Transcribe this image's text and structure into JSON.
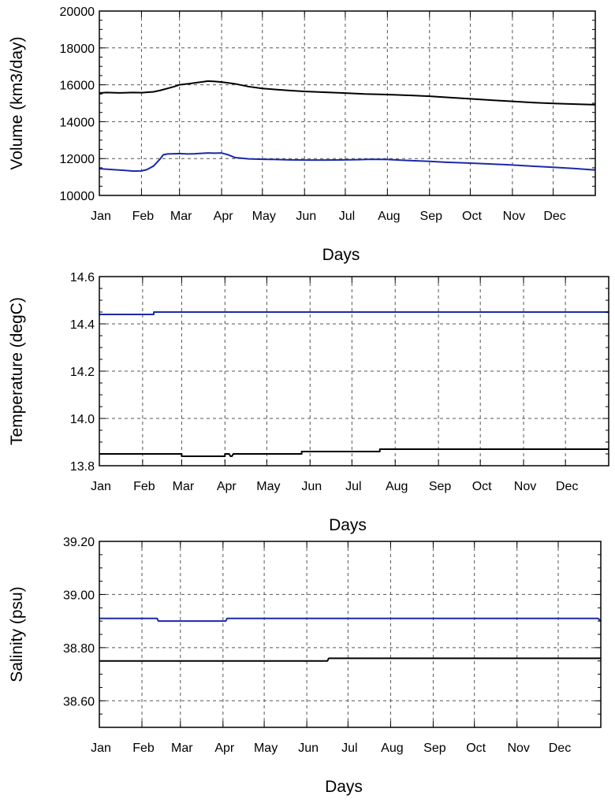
{
  "chart_data": [
    {
      "type": "line",
      "ylabel": "Volume (km3/day)",
      "xlabel": "Days",
      "ylim": [
        10000,
        20000
      ],
      "xlim": [
        0,
        365
      ],
      "yticks": [
        10000,
        12000,
        14000,
        16000,
        18000,
        20000
      ],
      "ytick_labels": [
        "10000",
        "12000",
        "14000",
        "16000",
        "18000",
        "20000"
      ],
      "months": [
        "Jan",
        "Feb",
        "Mar",
        "Apr",
        "May",
        "Jun",
        "Jul",
        "Aug",
        "Sep",
        "Oct",
        "Nov",
        "Dec"
      ],
      "month_days": [
        0,
        31,
        59,
        90,
        120,
        151,
        181,
        212,
        243,
        273,
        304,
        334
      ],
      "grid": true,
      "series": [
        {
          "color": "#000000",
          "x": [
            0,
            5,
            15,
            25,
            31,
            40,
            45,
            50,
            55,
            59,
            65,
            70,
            75,
            80,
            85,
            90,
            95,
            100,
            110,
            120,
            130,
            140,
            151,
            165,
            181,
            195,
            212,
            230,
            243,
            260,
            273,
            290,
            304,
            320,
            334,
            350,
            365
          ],
          "y": [
            15550,
            15580,
            15560,
            15580,
            15570,
            15620,
            15700,
            15800,
            15900,
            16000,
            16050,
            16100,
            16150,
            16200,
            16180,
            16150,
            16100,
            16050,
            15900,
            15800,
            15740,
            15690,
            15640,
            15600,
            15550,
            15500,
            15470,
            15420,
            15380,
            15300,
            15240,
            15160,
            15100,
            15030,
            14990,
            14950,
            14920
          ]
        },
        {
          "color": "#1a2aa8",
          "x": [
            0,
            10,
            20,
            25,
            31,
            35,
            40,
            45,
            47,
            50,
            55,
            59,
            65,
            70,
            75,
            80,
            85,
            90,
            95,
            100,
            110,
            120,
            130,
            140,
            151,
            165,
            181,
            190,
            200,
            212,
            225,
            243,
            255,
            273,
            290,
            304,
            320,
            334,
            350,
            365
          ],
          "y": [
            11450,
            11400,
            11350,
            11320,
            11330,
            11400,
            11600,
            12000,
            12200,
            12250,
            12260,
            12270,
            12250,
            12260,
            12280,
            12300,
            12290,
            12300,
            12200,
            12050,
            11980,
            11960,
            11950,
            11930,
            11920,
            11920,
            11930,
            11940,
            11960,
            11950,
            11900,
            11850,
            11800,
            11750,
            11700,
            11650,
            11580,
            11530,
            11460,
            11380
          ]
        }
      ]
    },
    {
      "type": "line",
      "ylabel": "Temperature (degC)",
      "xlabel": "Days",
      "ylim": [
        13.8,
        14.6
      ],
      "xlim": [
        0,
        365
      ],
      "yticks": [
        13.8,
        14.0,
        14.2,
        14.4,
        14.6
      ],
      "ytick_labels": [
        "13.8",
        "14.0",
        "14.2",
        "14.4",
        "14.6"
      ],
      "months": [
        "Jan",
        "Feb",
        "Mar",
        "Apr",
        "May",
        "Jun",
        "Jul",
        "Aug",
        "Sep",
        "Oct",
        "Nov",
        "Dec"
      ],
      "month_days": [
        0,
        31,
        59,
        90,
        120,
        151,
        181,
        212,
        243,
        273,
        304,
        334
      ],
      "grid": true,
      "series": [
        {
          "color": "#1a2aa8",
          "x": [
            0,
            39,
            39,
            365
          ],
          "y": [
            14.44,
            14.44,
            14.45,
            14.45
          ]
        },
        {
          "color": "#000000",
          "x": [
            0,
            59,
            59,
            90,
            90,
            93,
            94,
            95,
            96,
            97,
            98,
            145,
            145,
            201,
            201,
            365
          ],
          "y": [
            13.85,
            13.85,
            13.84,
            13.84,
            13.85,
            13.85,
            13.84,
            13.84,
            13.85,
            13.85,
            13.85,
            13.85,
            13.86,
            13.86,
            13.87,
            13.87
          ]
        }
      ]
    },
    {
      "type": "line",
      "ylabel": "Salinity (psu)",
      "xlabel": "Days",
      "ylim": [
        38.5,
        39.2
      ],
      "xlim": [
        0,
        365
      ],
      "yticks": [
        38.6,
        38.8,
        39.0,
        39.2
      ],
      "ytick_labels": [
        "38.60",
        "38.80",
        "39.00",
        "39.20"
      ],
      "months": [
        "Jan",
        "Feb",
        "Mar",
        "Apr",
        "May",
        "Jun",
        "Jul",
        "Aug",
        "Sep",
        "Oct",
        "Nov",
        "Dec"
      ],
      "month_days": [
        0,
        31,
        59,
        90,
        120,
        151,
        181,
        212,
        243,
        273,
        304,
        334
      ],
      "grid": true,
      "series": [
        {
          "color": "#1a2aa8",
          "x": [
            0,
            42,
            43,
            92,
            93,
            363,
            365
          ],
          "y": [
            38.91,
            38.91,
            38.9,
            38.9,
            38.91,
            38.91,
            38.9
          ]
        },
        {
          "color": "#000000",
          "x": [
            0,
            166,
            167,
            365
          ],
          "y": [
            38.75,
            38.75,
            38.76,
            38.76
          ]
        }
      ]
    }
  ]
}
